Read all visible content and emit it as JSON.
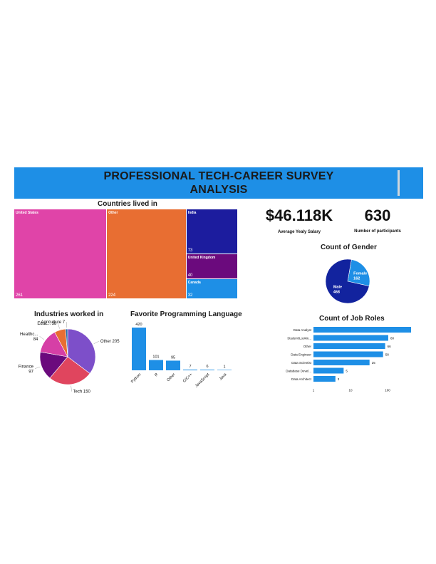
{
  "banner": {
    "title_line1": "PROFESSIONAL TECH-CAREER SURVEY",
    "title_line2": "ANALYSIS"
  },
  "kpis": {
    "salary": {
      "value": "$46.118K",
      "label": "Average Yealy Salary"
    },
    "participants": {
      "value": "630",
      "label": "Number of participants"
    }
  },
  "chart_data": [
    {
      "id": "countries",
      "type": "treemap",
      "title": "Countries lived in",
      "categories": [
        "United States",
        "Other",
        "India",
        "United Kingdom",
        "Canada"
      ],
      "values": [
        261,
        224,
        73,
        40,
        32
      ],
      "colors": [
        "#e044a8",
        "#e86e32",
        "#1c1c9e",
        "#6b0a7d",
        "#1e8fe6"
      ]
    },
    {
      "id": "gender",
      "type": "pie",
      "title": "Count of Gender",
      "categories": [
        "Female",
        "Male"
      ],
      "values": [
        162,
        468
      ],
      "colors": [
        "#1e8fe6",
        "#12239e"
      ]
    },
    {
      "id": "industries",
      "type": "pie",
      "title": "Industries worked in",
      "categories": [
        "Other",
        "Tech",
        "Finance",
        "Healthc...",
        "Educ...",
        "Agriculture"
      ],
      "values": [
        205,
        150,
        97,
        84,
        38,
        7
      ],
      "colors": [
        "#7d4fc9",
        "#e0455e",
        "#6b0a7d",
        "#d63fa6",
        "#e86e32",
        "#1f6aa8"
      ]
    },
    {
      "id": "languages",
      "type": "bar",
      "title": "Favorite Programming Language",
      "categories": [
        "Python",
        "R",
        "Other",
        "C/C++",
        "JavaScript",
        "Java"
      ],
      "values": [
        420,
        101,
        95,
        7,
        6,
        1
      ],
      "color": "#1e8fe6"
    },
    {
      "id": "roles",
      "type": "bar",
      "orientation": "horizontal",
      "title": "Count of Job Roles",
      "categories": [
        "Data Analyst",
        "Student/Lookin...",
        "Other",
        "Data Engineer",
        "Data Scientist",
        "Database Devel...",
        "Data Architect"
      ],
      "values": [
        331,
        80,
        66,
        58,
        25,
        5,
        3
      ],
      "x_scale": "log",
      "x_ticks": [
        "1",
        "10",
        "100"
      ],
      "color": "#1e8fe6"
    }
  ]
}
